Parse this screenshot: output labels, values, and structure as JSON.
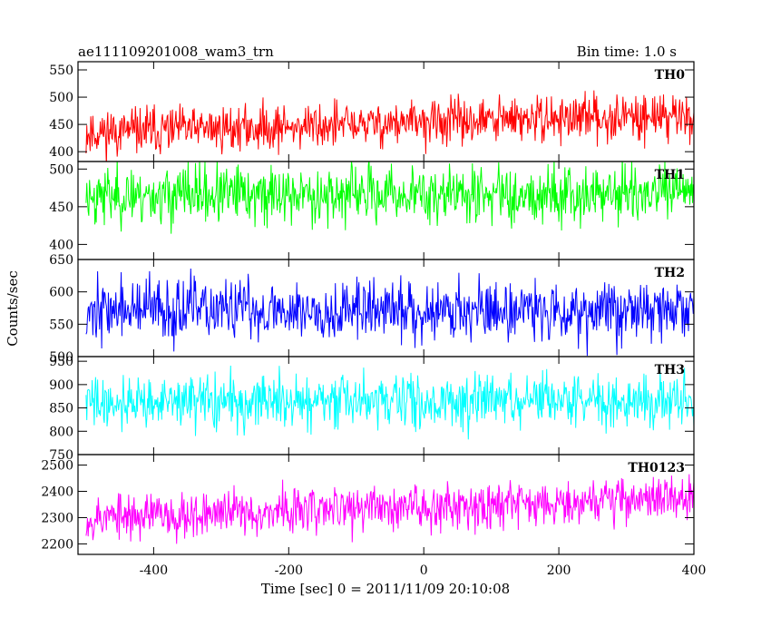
{
  "chart_data": {
    "type": "line",
    "title_left": "ae111109201008_wam3_trn",
    "title_right": "Bin time: 1.0 s",
    "xlabel": "Time [sec] 0 = 2011/11/09 20:10:08",
    "ylabel": "Counts/sec",
    "xlim": [
      -512,
      400
    ],
    "x_ticks": [
      -400,
      -200,
      0,
      200,
      400
    ],
    "x_start": -500,
    "x_end": 400,
    "series": [
      {
        "name": "TH0",
        "color": "#ff0000",
        "ylim": [
          382,
          565
        ],
        "y_ticks": [
          400,
          450,
          500,
          550
        ],
        "mean_start": 435,
        "mean_end": 468,
        "noise": 24,
        "seed": 11
      },
      {
        "name": "TH1",
        "color": "#00ff00",
        "ylim": [
          380,
          510
        ],
        "y_ticks": [
          400,
          450,
          500
        ],
        "mean_start": 465,
        "mean_end": 468,
        "noise": 22,
        "seed": 23
      },
      {
        "name": "TH2",
        "color": "#0000ff",
        "ylim": [
          500,
          650
        ],
        "y_ticks": [
          500,
          550,
          600,
          650
        ],
        "mean_start": 572,
        "mean_end": 572,
        "noise": 27,
        "seed": 37
      },
      {
        "name": "TH3",
        "color": "#00ffff",
        "ylim": [
          750,
          960
        ],
        "y_ticks": [
          750,
          800,
          850,
          900,
          950
        ],
        "mean_start": 862,
        "mean_end": 866,
        "noise": 32,
        "seed": 41
      },
      {
        "name": "TH0123",
        "color": "#ff00ff",
        "ylim": [
          2160,
          2540
        ],
        "y_ticks": [
          2200,
          2300,
          2400,
          2500
        ],
        "mean_start": 2300,
        "mean_end": 2380,
        "noise": 50,
        "seed": 53
      }
    ]
  }
}
